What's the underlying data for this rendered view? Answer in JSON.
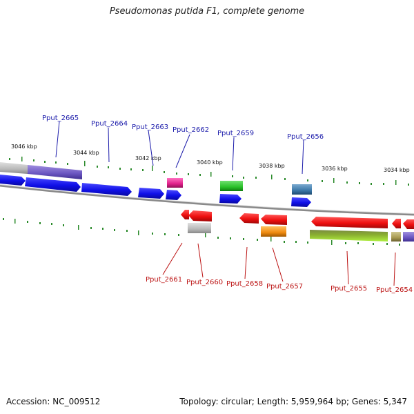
{
  "title": "Pseudomonas putida F1, complete genome",
  "footer": {
    "accession": "Accession: NC_009512",
    "summary": "Topology: circular; Length: 5,959,964 bp; Genes: 5,347"
  },
  "scale_labels": [
    "3046 kbp",
    "3044 kbp",
    "3042 kbp",
    "3040 kbp",
    "3038 kbp",
    "3036 kbp",
    "3034 kbp"
  ],
  "forward_labels": [
    "Pput_2665",
    "Pput_2664",
    "Pput_2663",
    "Pput_2662",
    "Pput_2659",
    "Pput_2656"
  ],
  "reverse_labels": [
    "Pput_2661",
    "Pput_2660",
    "Pput_2658",
    "Pput_2657",
    "Pput_2655",
    "Pput_2654"
  ],
  "colors": {
    "forward_label": "#1a1aaa",
    "reverse_label": "#bb1111",
    "cds_blue": "#1010ee",
    "cds_red": "#ee1111",
    "tick_green": "#2a8a2a",
    "backbone": "#8a8a8a"
  }
}
